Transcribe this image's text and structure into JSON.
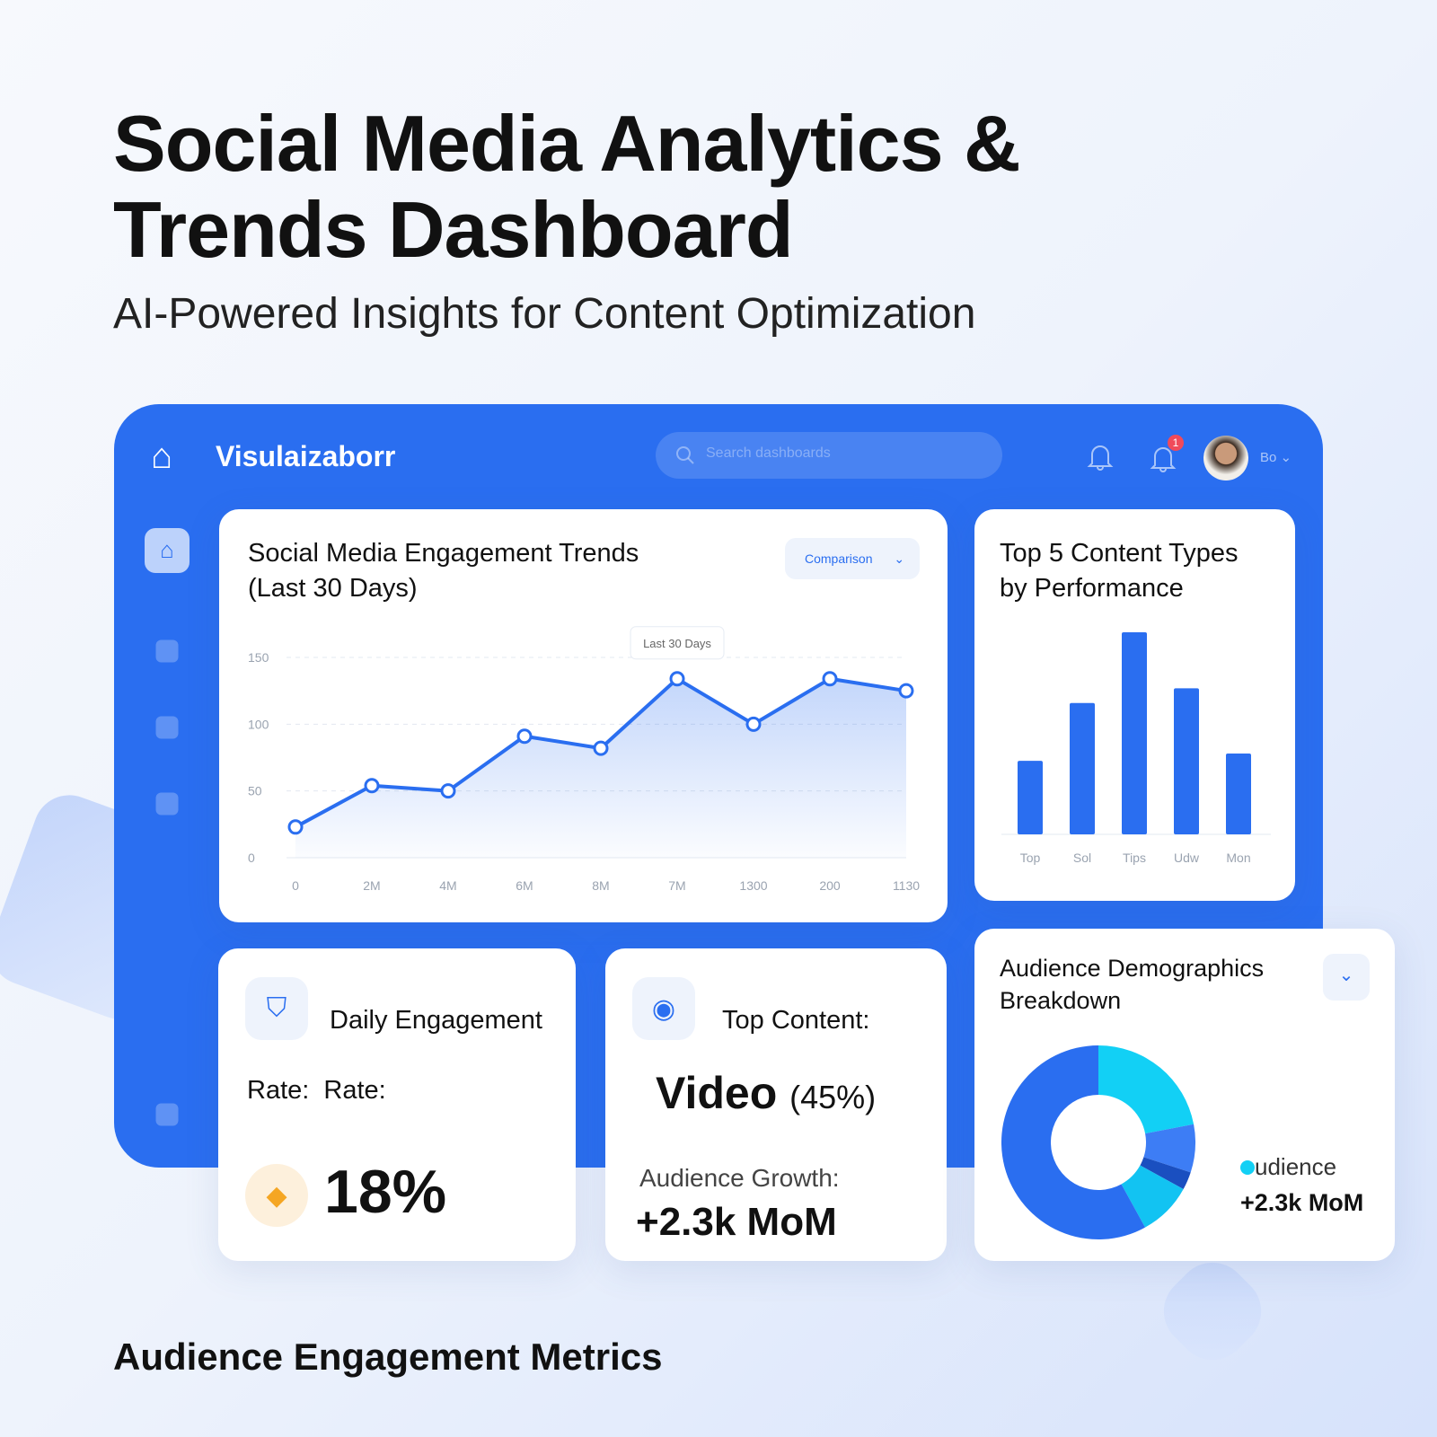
{
  "title": "Social Media Analytics & Trends Dashboard",
  "title_line1": "Social Media Analytics &",
  "title_line2": "Trends Dashboard",
  "subtitle": "AI-Powered Insights for Content Optimization",
  "footer": "Audience Engagement Metrics",
  "app": {
    "name": "Visulaizaborr",
    "search_placeholder": "Search dashboards",
    "notification_count": "1",
    "user_label": "Bo"
  },
  "colors": {
    "accent": "#2a6ef0",
    "cyan": "#12d0f5",
    "badge": "#f04a5a"
  },
  "line_card": {
    "title_1": "Social Media Engagement Trends",
    "title_2": "(Last 30 Days)",
    "dropdown": "Comparison",
    "tooltip": "Last 30 Days"
  },
  "bar_card": {
    "title_1": "Top 5 Content Types",
    "title_2": "by Performance"
  },
  "kpi1": {
    "label": "Daily Engagement",
    "sub": "Rate:  Rate:",
    "value": "18%"
  },
  "kpi2": {
    "label": "Top Content:",
    "value": "Video",
    "pct": "(45%)",
    "growth_label": "Audience Growth:",
    "growth": "+2.3k MoM"
  },
  "donut_card": {
    "title_1": "Audience Demographics",
    "title_2": "Breakdown",
    "legend": "udience",
    "legend_value": "+2.3k MoM"
  },
  "chart_data": [
    {
      "type": "area",
      "title": "Social Media Engagement Trends (Last 30 Days)",
      "x": [
        "0",
        "2M",
        "4M",
        "6M",
        "8M",
        "7M",
        "1300",
        "200",
        "1130"
      ],
      "y": [
        23,
        54,
        50,
        91,
        82,
        134,
        100,
        134,
        125
      ],
      "yticks": [
        0,
        50,
        100,
        150
      ],
      "ylim": [
        0,
        150
      ],
      "grid": true
    },
    {
      "type": "bar",
      "title": "Top 5 Content Types by Performance",
      "categories": [
        "Top",
        "Sol",
        "Tips",
        "Udw",
        "Mon"
      ],
      "values": [
        80,
        143,
        220,
        159,
        88
      ]
    },
    {
      "type": "pie",
      "title": "Audience Demographics Breakdown",
      "values": [
        58,
        22,
        8,
        3,
        9
      ],
      "colors": [
        "#2a6ef0",
        "#12d0f5",
        "#3d7df5",
        "#1a4fc0",
        "#12c3f2"
      ]
    }
  ]
}
